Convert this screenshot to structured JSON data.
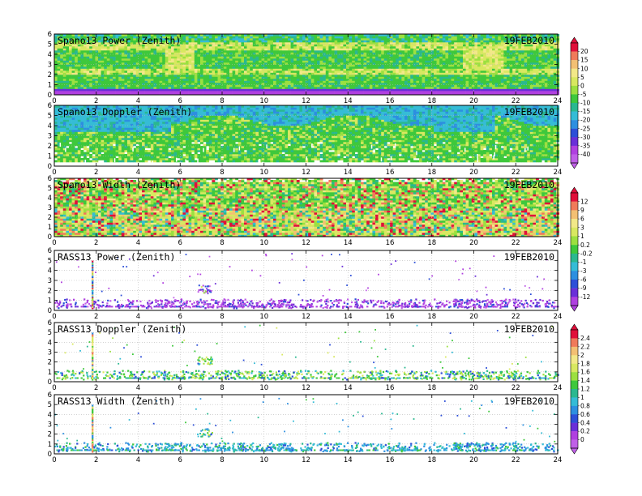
{
  "chart_data": [
    {
      "type": "heatmap",
      "title": "Spano13 Power (Zenith)",
      "date": "19FEB2010",
      "xlim": [
        0,
        24
      ],
      "ylim": [
        0,
        6
      ],
      "x_ticks": [
        0,
        2,
        4,
        6,
        8,
        10,
        12,
        14,
        16,
        18,
        20,
        22,
        24
      ],
      "y_ticks": [
        0,
        1,
        2,
        3,
        4,
        5,
        6
      ],
      "colorbar": "A",
      "grid": true
    },
    {
      "type": "heatmap",
      "title": "Spano13 Doppler (Zenith)",
      "date": "19FEB2010",
      "xlim": [
        0,
        24
      ],
      "ylim": [
        0,
        6
      ],
      "x_ticks": [
        0,
        2,
        4,
        6,
        8,
        10,
        12,
        14,
        16,
        18,
        20,
        22,
        24
      ],
      "y_ticks": [
        0,
        1,
        2,
        3,
        4,
        5,
        6
      ],
      "colorbar": "A",
      "grid": true
    },
    {
      "type": "heatmap",
      "title": "Spano13 Width (Zenith)",
      "date": "19FEB2010",
      "xlim": [
        0,
        24
      ],
      "ylim": [
        0,
        6
      ],
      "x_ticks": [
        0,
        2,
        4,
        6,
        8,
        10,
        12,
        14,
        16,
        18,
        20,
        22,
        24
      ],
      "y_ticks": [
        0,
        1,
        2,
        3,
        4,
        5,
        6
      ],
      "colorbar": "B",
      "grid": true
    },
    {
      "type": "scatter",
      "title": "RASS13 Power (Zenith)",
      "date": "19FEB2010",
      "xlim": [
        0,
        24
      ],
      "ylim": [
        0,
        6
      ],
      "x_ticks": [
        0,
        2,
        4,
        6,
        8,
        10,
        12,
        14,
        16,
        18,
        20,
        22,
        24
      ],
      "y_ticks": [
        0,
        1,
        2,
        3,
        4,
        5,
        6
      ],
      "colorbar": "B",
      "grid": true
    },
    {
      "type": "scatter",
      "title": "RASS13 Doppler (Zenith)",
      "date": "19FEB2010",
      "xlim": [
        0,
        24
      ],
      "ylim": [
        0,
        6
      ],
      "x_ticks": [
        0,
        2,
        4,
        6,
        8,
        10,
        12,
        14,
        16,
        18,
        20,
        22,
        24
      ],
      "y_ticks": [
        0,
        1,
        2,
        3,
        4,
        5,
        6
      ],
      "colorbar": "C",
      "grid": true
    },
    {
      "type": "scatter",
      "title": "RASS13 Width (Zenith)",
      "date": "19FEB2010",
      "xlim": [
        0,
        24
      ],
      "ylim": [
        0,
        6
      ],
      "x_ticks": [
        0,
        2,
        4,
        6,
        8,
        10,
        12,
        14,
        16,
        18,
        20,
        22,
        24
      ],
      "y_ticks": [
        0,
        1,
        2,
        3,
        4,
        5,
        6
      ],
      "colorbar": "C",
      "grid": true
    }
  ],
  "colorbars": {
    "A": {
      "labels": [
        "20",
        "15",
        "10",
        "5",
        "0",
        "-5",
        "-10",
        "-15",
        "-20",
        "-25",
        "-30",
        "-35",
        "-40"
      ],
      "colors": [
        "#e0103a",
        "#f07a5a",
        "#f3c073",
        "#f2e888",
        "#d8e860",
        "#9ce040",
        "#3ec83c",
        "#2ab890",
        "#35bcd6",
        "#2d8fe0",
        "#2d4fd8",
        "#6a2fd8",
        "#b040e0",
        "#c060e8"
      ]
    },
    "B": {
      "labels": [
        "12",
        "9",
        "6",
        "3",
        "1",
        "0.2",
        "-0.2",
        "-1",
        "-3",
        "-6",
        "-9",
        "-12"
      ],
      "colors": [
        "#e0103a",
        "#f07a5a",
        "#f3c073",
        "#f2e888",
        "#d8e860",
        "#9ce040",
        "#3ec83c",
        "#2ab890",
        "#35bcd6",
        "#2d8fe0",
        "#2d4fd8",
        "#6a2fd8",
        "#b040e0"
      ]
    },
    "C": {
      "labels": [
        "2.4",
        "2.2",
        "2",
        "1.8",
        "1.6",
        "1.4",
        "1.2",
        "1",
        "0.8",
        "0.6",
        "0.4",
        "0.2",
        "0"
      ],
      "colors": [
        "#e0103a",
        "#f07a5a",
        "#f3c073",
        "#f2e888",
        "#d8e860",
        "#9ce040",
        "#3ec83c",
        "#2ab890",
        "#35bcd6",
        "#2d8fe0",
        "#2d4fd8",
        "#6a2fd8",
        "#b040e0",
        "#c060e8"
      ]
    }
  }
}
